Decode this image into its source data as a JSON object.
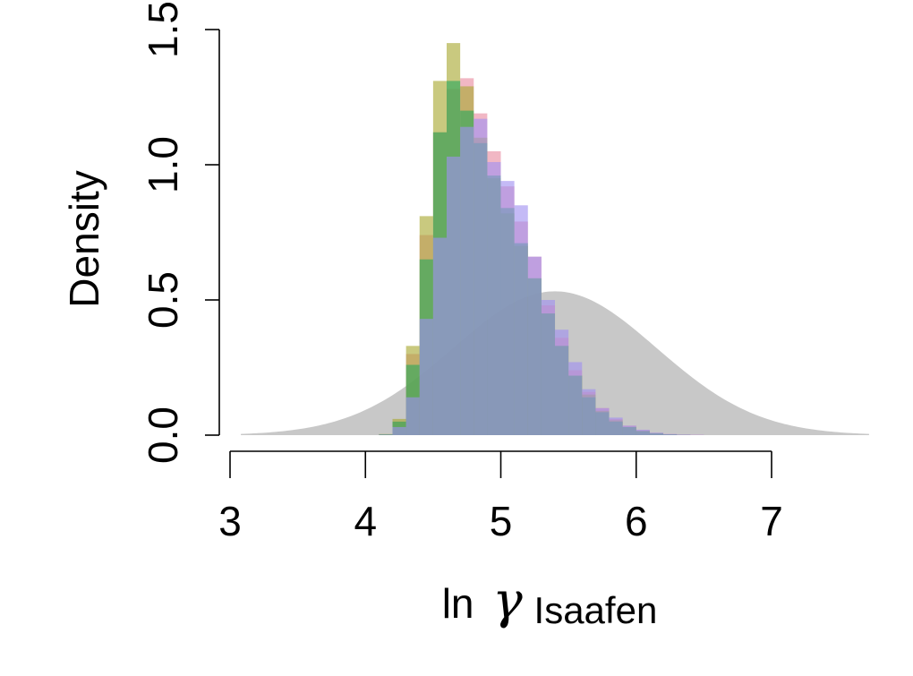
{
  "chart_data": {
    "type": "bar",
    "title": "",
    "xlabel": "ln",
    "xlabel_symbol": "γ",
    "xlabel_subscript": "Isaafen",
    "ylabel": "Density",
    "xlim": [
      3,
      7
    ],
    "ylim": [
      0,
      1.5
    ],
    "x_ticks": [
      "3",
      "4",
      "5",
      "6",
      "7"
    ],
    "y_ticks": [
      "0.0",
      "0.5",
      "1.0",
      "1.5"
    ],
    "grid": false,
    "legend": "none",
    "prior": {
      "type": "area",
      "distribution": "normal",
      "mean": 5.4,
      "sd": 0.75,
      "color": "#c8c8c8"
    },
    "bin_edges": [
      4.1,
      4.2,
      4.3,
      4.4,
      4.5,
      4.6,
      4.7,
      4.8,
      4.9,
      5.0,
      5.1,
      5.2,
      5.3,
      5.4,
      5.5,
      5.6,
      5.7,
      5.8,
      5.9,
      6.0,
      6.1,
      6.2,
      6.3,
      6.4,
      6.5
    ],
    "series": [
      {
        "color": "#e88aa0",
        "values": [
          0.003,
          0.05,
          0.3,
          0.74,
          1.12,
          1.28,
          1.32,
          1.19,
          1.05,
          0.92,
          0.79,
          0.66,
          0.48,
          0.36,
          0.24,
          0.16,
          0.1,
          0.06,
          0.035,
          0.018,
          0.008,
          0.004,
          0.002,
          0.001
        ]
      },
      {
        "color": "#a8a830",
        "values": [
          0.004,
          0.06,
          0.33,
          0.81,
          1.31,
          1.45,
          1.29,
          1.1,
          0.95,
          0.82,
          0.7,
          0.58,
          0.45,
          0.33,
          0.22,
          0.15,
          0.09,
          0.055,
          0.03,
          0.016,
          0.007,
          0.003,
          0.001,
          0.0
        ]
      },
      {
        "color": "#2aa85c",
        "values": [
          0.003,
          0.05,
          0.26,
          0.65,
          1.12,
          1.31,
          1.2,
          1.08,
          0.96,
          0.84,
          0.71,
          0.58,
          0.45,
          0.33,
          0.22,
          0.14,
          0.085,
          0.05,
          0.03,
          0.015,
          0.007,
          0.003,
          0.001,
          0.0
        ]
      },
      {
        "color": "#9f8ff0",
        "values": [
          0.002,
          0.03,
          0.14,
          0.43,
          0.73,
          1.03,
          1.14,
          1.17,
          1.01,
          0.94,
          0.85,
          0.66,
          0.5,
          0.39,
          0.27,
          0.17,
          0.1,
          0.065,
          0.035,
          0.02,
          0.009,
          0.004,
          0.002,
          0.001
        ]
      }
    ]
  }
}
